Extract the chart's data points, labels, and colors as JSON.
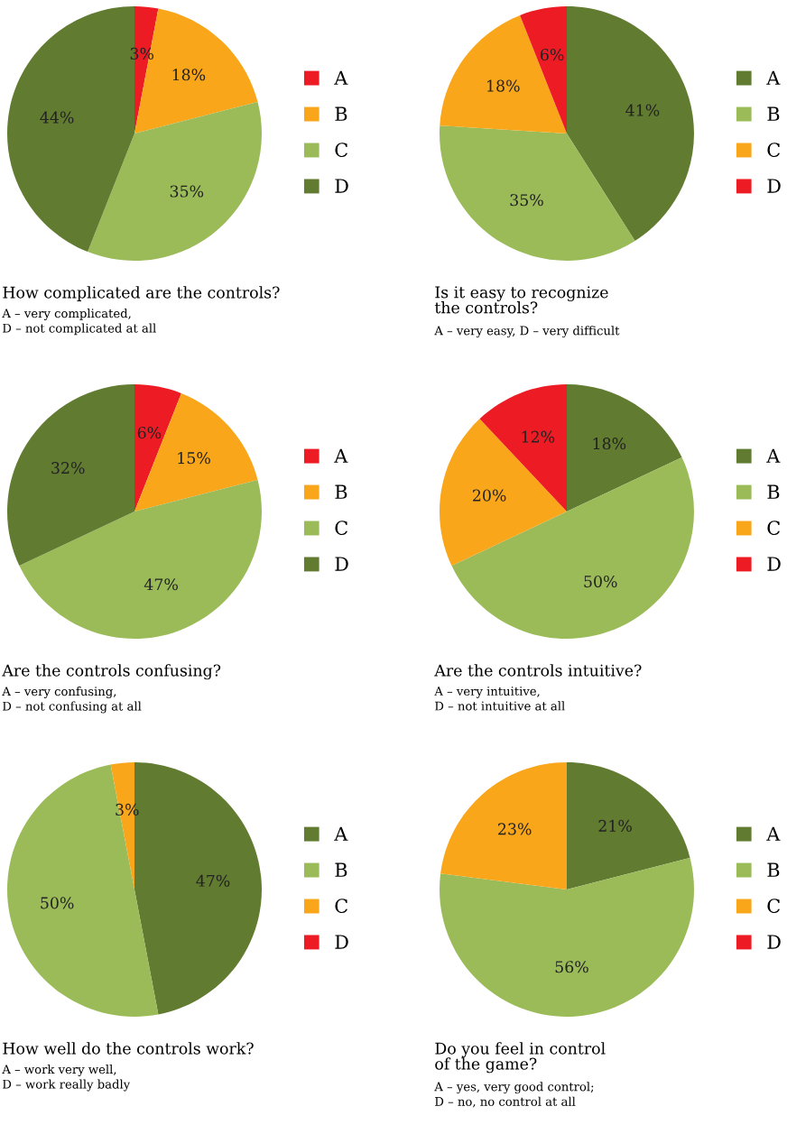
{
  "chart_data": [
    {
      "type": "pie",
      "title": "How complicated are the controls?",
      "subtitle": "A – very complicated,\nD – not complicated at all",
      "categories": [
        "A",
        "B",
        "C",
        "D"
      ],
      "values": [
        3,
        18,
        35,
        44
      ],
      "colors": [
        "#ed1c24",
        "#f9a61b",
        "#9bbb59",
        "#617b30"
      ],
      "value_labels": [
        "3%",
        "18%",
        "35%",
        "44%"
      ],
      "legend": "right"
    },
    {
      "type": "pie",
      "title": "Is it easy to recognize\nthe controls?",
      "subtitle": "A – very easy, D – very difficult",
      "categories": [
        "A",
        "B",
        "C",
        "D"
      ],
      "values": [
        41,
        35,
        18,
        6
      ],
      "colors": [
        "#617b30",
        "#9bbb59",
        "#f9a61b",
        "#ed1c24"
      ],
      "value_labels": [
        "41%",
        "35%",
        "18%",
        "6%"
      ],
      "legend": "right"
    },
    {
      "type": "pie",
      "title": "Are the controls confusing?",
      "subtitle": "A – very confusing,\nD – not confusing at all",
      "categories": [
        "A",
        "B",
        "C",
        "D"
      ],
      "values": [
        6,
        15,
        47,
        32
      ],
      "colors": [
        "#ed1c24",
        "#f9a61b",
        "#9bbb59",
        "#617b30"
      ],
      "value_labels": [
        "6%",
        "15%",
        "47%",
        "32%"
      ],
      "legend": "right"
    },
    {
      "type": "pie",
      "title": "Are the controls intuitive?",
      "subtitle": "A – very intuitive,\nD – not intuitive at all",
      "categories": [
        "A",
        "B",
        "C",
        "D"
      ],
      "values": [
        18,
        50,
        20,
        12
      ],
      "colors": [
        "#617b30",
        "#9bbb59",
        "#f9a61b",
        "#ed1c24"
      ],
      "value_labels": [
        "18%",
        "50%",
        "20%",
        "12%"
      ],
      "legend": "right"
    },
    {
      "type": "pie",
      "title": "How well do the controls work?",
      "subtitle": "A – work very well,\nD – work really badly",
      "categories": [
        "A",
        "B",
        "C",
        "D"
      ],
      "values": [
        47,
        50,
        3,
        0
      ],
      "colors": [
        "#617b30",
        "#9bbb59",
        "#f9a61b",
        "#ed1c24"
      ],
      "value_labels": [
        "47%",
        "50%",
        "3%",
        null
      ],
      "legend": "right"
    },
    {
      "type": "pie",
      "title": "Do you feel in control\nof the game?",
      "subtitle": "A – yes, very good control;\nD – no, no control at all",
      "categories": [
        "A",
        "B",
        "C",
        "D"
      ],
      "values": [
        21,
        56,
        23,
        0
      ],
      "colors": [
        "#617b30",
        "#9bbb59",
        "#f9a61b",
        "#ed1c24"
      ],
      "value_labels": [
        "21%",
        "56%",
        "23%",
        null
      ],
      "legend": "right"
    }
  ]
}
